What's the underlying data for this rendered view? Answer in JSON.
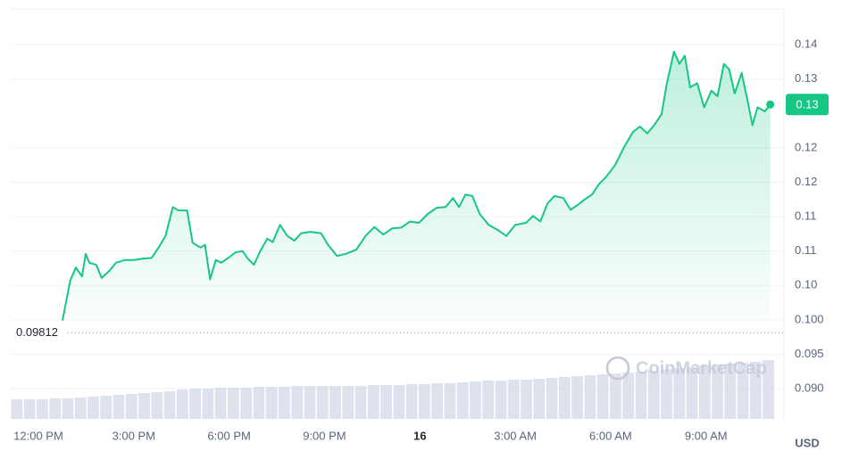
{
  "chart_data": {
    "type": "line",
    "color": "#16c784",
    "grid": true,
    "currency": "USD",
    "watermark": "CoinMarketCap",
    "current_price_label": "0.13",
    "baseline": {
      "value": 0.09812,
      "label": "0.09812"
    },
    "xlim": [
      -0.87,
      23.17
    ],
    "xticks": [
      {
        "value": 0,
        "label": "12:00 PM"
      },
      {
        "value": 3,
        "label": "3:00 PM"
      },
      {
        "value": 6,
        "label": "6:00 PM"
      },
      {
        "value": 9,
        "label": "9:00 PM"
      },
      {
        "value": 12,
        "label": "16"
      },
      {
        "value": 15,
        "label": "3:00 AM"
      },
      {
        "value": 18,
        "label": "6:00 AM"
      },
      {
        "value": 21,
        "label": "9:00 AM"
      }
    ],
    "ylim": [
      0.0856,
      0.1452
    ],
    "yticks": [
      {
        "value": 0.09,
        "label": "0.090"
      },
      {
        "value": 0.095,
        "label": "0.095"
      },
      {
        "value": 0.1,
        "label": "0.100"
      },
      {
        "value": 0.105,
        "label": "0.10"
      },
      {
        "value": 0.11,
        "label": "0.11"
      },
      {
        "value": 0.115,
        "label": "0.11"
      },
      {
        "value": 0.12,
        "label": "0.12"
      },
      {
        "value": 0.125,
        "label": "0.12"
      },
      {
        "value": 0.135,
        "label": "0.13"
      },
      {
        "value": 0.14,
        "label": "0.14"
      }
    ],
    "x": [
      0.76,
      1.0,
      1.18,
      1.37,
      1.49,
      1.6,
      1.82,
      1.99,
      2.21,
      2.44,
      2.72,
      3.0,
      3.28,
      3.56,
      3.78,
      4.0,
      4.23,
      4.4,
      4.68,
      4.85,
      5.1,
      5.24,
      5.4,
      5.58,
      5.75,
      6.03,
      6.2,
      6.42,
      6.59,
      6.78,
      6.98,
      7.2,
      7.37,
      7.6,
      7.83,
      8.05,
      8.27,
      8.55,
      8.89,
      9.11,
      9.39,
      9.67,
      10.0,
      10.29,
      10.57,
      10.85,
      11.13,
      11.41,
      11.69,
      11.97,
      12.25,
      12.53,
      12.81,
      13.04,
      13.23,
      13.43,
      13.65,
      13.88,
      14.16,
      14.44,
      14.72,
      15.0,
      15.34,
      15.56,
      15.79,
      16.01,
      16.23,
      16.51,
      16.74,
      16.96,
      17.18,
      17.41,
      17.63,
      17.86,
      18.14,
      18.42,
      18.7,
      18.92,
      19.15,
      19.37,
      19.6,
      19.76,
      19.99,
      20.16,
      20.33,
      20.5,
      20.72,
      20.94,
      21.17,
      21.36,
      21.56,
      21.73,
      21.9,
      22.12,
      22.29,
      22.46,
      22.62,
      22.85,
      23.02
    ],
    "values": [
      0.0999,
      0.1057,
      0.1076,
      0.1063,
      0.1096,
      0.1083,
      0.108,
      0.1061,
      0.107,
      0.1083,
      0.1087,
      0.1087,
      0.1089,
      0.109,
      0.1105,
      0.1122,
      0.1164,
      0.1159,
      0.1159,
      0.1112,
      0.1105,
      0.1109,
      0.1059,
      0.1087,
      0.1083,
      0.1092,
      0.1098,
      0.11,
      0.1089,
      0.108,
      0.11,
      0.1118,
      0.1113,
      0.1138,
      0.1122,
      0.1115,
      0.1126,
      0.1128,
      0.1126,
      0.1109,
      0.1093,
      0.1096,
      0.1102,
      0.1122,
      0.1135,
      0.1124,
      0.1133,
      0.1134,
      0.1143,
      0.1141,
      0.1154,
      0.1163,
      0.1164,
      0.1177,
      0.1164,
      0.1182,
      0.118,
      0.1154,
      0.1138,
      0.1131,
      0.1122,
      0.1138,
      0.1141,
      0.1151,
      0.1143,
      0.1169,
      0.118,
      0.1177,
      0.116,
      0.1167,
      0.1175,
      0.1182,
      0.1197,
      0.1208,
      0.1225,
      0.1251,
      0.1273,
      0.1281,
      0.1271,
      0.1283,
      0.1299,
      0.1342,
      0.139,
      0.1372,
      0.1384,
      0.1338,
      0.1344,
      0.1309,
      0.1333,
      0.1325,
      0.1372,
      0.1364,
      0.1329,
      0.1359,
      0.1322,
      0.1283,
      0.1309,
      0.1303,
      0.1313
    ],
    "volume": {
      "color": "#cfd6e4",
      "vlim": [
        0,
        70
      ],
      "values": [
        22,
        22,
        22,
        23,
        23,
        24,
        25,
        26,
        27,
        28,
        29,
        30,
        31,
        33,
        34,
        34,
        35,
        35,
        35,
        36,
        36,
        36,
        37,
        37,
        37,
        37,
        37,
        37,
        38,
        38,
        38,
        39,
        39,
        40,
        40,
        41,
        42,
        43,
        43,
        44,
        44,
        45,
        46,
        47,
        48,
        49,
        50,
        51,
        52,
        53,
        54,
        56,
        57,
        58,
        60,
        61,
        62,
        63,
        64,
        66
      ]
    }
  }
}
